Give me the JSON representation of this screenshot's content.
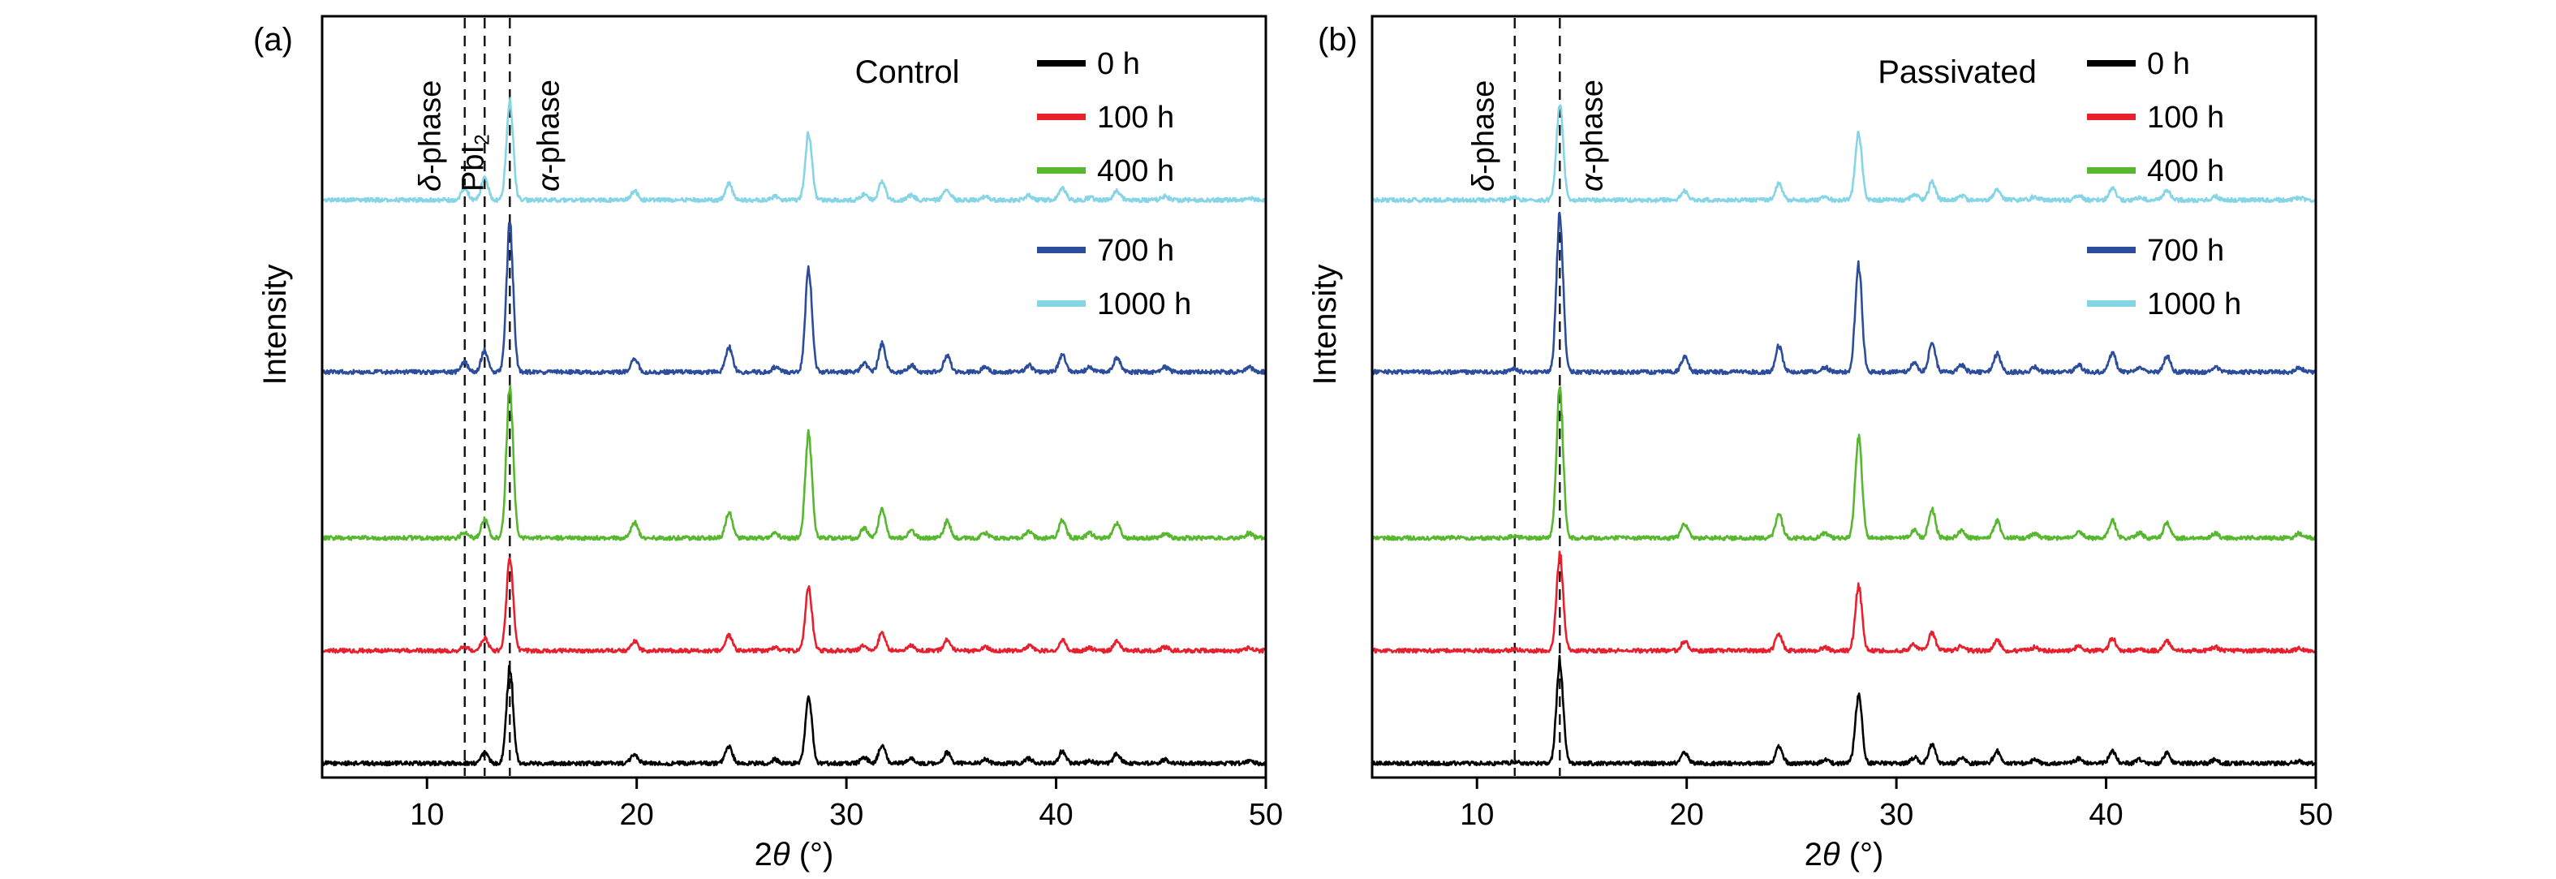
{
  "chart_data": [
    {
      "type": "line",
      "panel_tag": "(a)",
      "title": "Control",
      "xlabel": "2θ (°)",
      "ylabel": "Intensity",
      "xlim": [
        5,
        50
      ],
      "xticks": [
        10,
        20,
        30,
        40,
        50
      ],
      "ylim": [
        -0.12,
        6.3
      ],
      "grid": false,
      "legend": {
        "position": "top-right-inside",
        "groups": [
          [
            "0 h",
            "100 h",
            "400 h"
          ],
          [
            "700 h",
            "1000 h"
          ]
        ]
      },
      "annotations": [
        {
          "x": 11.8,
          "label": "δ-phase",
          "dx": -30
        },
        {
          "x": 12.75,
          "label": "PbI₂",
          "dx": -2
        },
        {
          "x": 13.95,
          "label": "α-phase",
          "dx": 60
        }
      ],
      "series": [
        {
          "name": "0 h",
          "color": "#000000",
          "offset": 0,
          "peaks": [
            [
              12.75,
              0.09
            ],
            [
              13.95,
              0.8
            ],
            [
              19.9,
              0.08
            ],
            [
              24.4,
              0.14
            ],
            [
              26.6,
              0.03
            ],
            [
              28.2,
              0.54
            ],
            [
              30.85,
              0.05
            ],
            [
              31.7,
              0.15
            ],
            [
              33.1,
              0.04
            ],
            [
              34.8,
              0.09
            ],
            [
              36.6,
              0.03
            ],
            [
              38.7,
              0.04
            ],
            [
              40.3,
              0.1
            ],
            [
              41.6,
              0.02
            ],
            [
              42.9,
              0.08
            ],
            [
              45.2,
              0.03
            ],
            [
              49.2,
              0.02
            ]
          ]
        },
        {
          "name": "100 h",
          "color": "#e8202e",
          "offset": 0.95,
          "peaks": [
            [
              11.8,
              0.03
            ],
            [
              12.75,
              0.11
            ],
            [
              13.95,
              0.78
            ],
            [
              19.9,
              0.08
            ],
            [
              24.4,
              0.13
            ],
            [
              26.6,
              0.03
            ],
            [
              28.2,
              0.53
            ],
            [
              30.85,
              0.05
            ],
            [
              31.7,
              0.15
            ],
            [
              33.1,
              0.04
            ],
            [
              34.8,
              0.09
            ],
            [
              36.6,
              0.03
            ],
            [
              38.7,
              0.04
            ],
            [
              40.3,
              0.09
            ],
            [
              41.6,
              0.02
            ],
            [
              42.9,
              0.08
            ],
            [
              45.2,
              0.03
            ],
            [
              49.2,
              0.02
            ]
          ]
        },
        {
          "name": "400 h",
          "color": "#57b830",
          "offset": 1.9,
          "peaks": [
            [
              11.8,
              0.05
            ],
            [
              12.75,
              0.16
            ],
            [
              13.95,
              1.28
            ],
            [
              19.9,
              0.13
            ],
            [
              24.4,
              0.22
            ],
            [
              26.6,
              0.04
            ],
            [
              28.2,
              0.87
            ],
            [
              30.85,
              0.08
            ],
            [
              31.7,
              0.24
            ],
            [
              33.1,
              0.06
            ],
            [
              34.8,
              0.14
            ],
            [
              36.6,
              0.04
            ],
            [
              38.7,
              0.06
            ],
            [
              40.3,
              0.15
            ],
            [
              41.6,
              0.04
            ],
            [
              42.9,
              0.13
            ],
            [
              45.2,
              0.04
            ],
            [
              49.2,
              0.04
            ]
          ]
        },
        {
          "name": "700 h",
          "color": "#2c4d9c",
          "offset": 3.3,
          "peaks": [
            [
              11.8,
              0.08
            ],
            [
              12.75,
              0.18
            ],
            [
              13.95,
              1.25
            ],
            [
              19.9,
              0.12
            ],
            [
              24.4,
              0.21
            ],
            [
              26.6,
              0.04
            ],
            [
              28.2,
              0.85
            ],
            [
              30.85,
              0.07
            ],
            [
              31.7,
              0.24
            ],
            [
              33.1,
              0.06
            ],
            [
              34.8,
              0.14
            ],
            [
              36.6,
              0.04
            ],
            [
              38.7,
              0.06
            ],
            [
              40.3,
              0.15
            ],
            [
              41.6,
              0.04
            ],
            [
              42.9,
              0.12
            ],
            [
              45.2,
              0.04
            ],
            [
              49.2,
              0.04
            ]
          ]
        },
        {
          "name": "1000 h",
          "color": "#85d5e6",
          "offset": 4.75,
          "peaks": [
            [
              11.8,
              0.1
            ],
            [
              12.75,
              0.19
            ],
            [
              13.95,
              0.82
            ],
            [
              19.9,
              0.08
            ],
            [
              24.4,
              0.14
            ],
            [
              26.6,
              0.03
            ],
            [
              28.2,
              0.56
            ],
            [
              30.85,
              0.05
            ],
            [
              31.7,
              0.16
            ],
            [
              33.1,
              0.04
            ],
            [
              34.8,
              0.09
            ],
            [
              36.6,
              0.03
            ],
            [
              38.7,
              0.04
            ],
            [
              40.3,
              0.1
            ],
            [
              41.6,
              0.02
            ],
            [
              42.9,
              0.08
            ],
            [
              45.2,
              0.03
            ],
            [
              49.2,
              0.02
            ]
          ]
        }
      ]
    },
    {
      "type": "line",
      "panel_tag": "(b)",
      "title": "Passivated",
      "xlabel": "2θ (°)",
      "ylabel": "Intensity",
      "xlim": [
        5,
        50
      ],
      "xticks": [
        10,
        20,
        30,
        40,
        50
      ],
      "ylim": [
        -0.12,
        6.3
      ],
      "grid": false,
      "legend": {
        "position": "top-right-inside",
        "groups": [
          [
            "0 h",
            "100 h",
            "400 h"
          ],
          [
            "700 h",
            "1000 h"
          ]
        ]
      },
      "annotations": [
        {
          "x": 11.8,
          "label": "δ-phase",
          "dx": -26
        },
        {
          "x": 13.95,
          "label": "α-phase",
          "dx": 52
        }
      ],
      "series": [
        {
          "name": "0 h",
          "color": "#000000",
          "offset": 0,
          "peaks": [
            [
              11.8,
              0.015
            ],
            [
              13.95,
              0.85
            ],
            [
              19.9,
              0.09
            ],
            [
              24.4,
              0.15
            ],
            [
              26.6,
              0.03
            ],
            [
              28.2,
              0.58
            ],
            [
              30.85,
              0.05
            ],
            [
              31.7,
              0.16
            ],
            [
              33.1,
              0.04
            ],
            [
              34.8,
              0.1
            ],
            [
              36.6,
              0.03
            ],
            [
              38.7,
              0.04
            ],
            [
              40.3,
              0.1
            ],
            [
              41.6,
              0.03
            ],
            [
              42.9,
              0.09
            ],
            [
              45.2,
              0.03
            ],
            [
              49.2,
              0.02
            ]
          ]
        },
        {
          "name": "100 h",
          "color": "#e8202e",
          "offset": 0.95,
          "peaks": [
            [
              11.8,
              0.015
            ],
            [
              13.95,
              0.8
            ],
            [
              19.9,
              0.08
            ],
            [
              24.4,
              0.14
            ],
            [
              26.6,
              0.03
            ],
            [
              28.2,
              0.54
            ],
            [
              30.85,
              0.05
            ],
            [
              31.7,
              0.15
            ],
            [
              33.1,
              0.04
            ],
            [
              34.8,
              0.09
            ],
            [
              36.6,
              0.03
            ],
            [
              38.7,
              0.04
            ],
            [
              40.3,
              0.1
            ],
            [
              41.6,
              0.02
            ],
            [
              42.9,
              0.08
            ],
            [
              45.2,
              0.03
            ],
            [
              49.2,
              0.02
            ]
          ]
        },
        {
          "name": "400 h",
          "color": "#57b830",
          "offset": 1.9,
          "peaks": [
            [
              11.8,
              0.02
            ],
            [
              13.95,
              1.25
            ],
            [
              19.9,
              0.12
            ],
            [
              24.4,
              0.21
            ],
            [
              26.6,
              0.04
            ],
            [
              28.2,
              0.85
            ],
            [
              30.85,
              0.07
            ],
            [
              31.7,
              0.24
            ],
            [
              33.1,
              0.06
            ],
            [
              34.8,
              0.14
            ],
            [
              36.6,
              0.04
            ],
            [
              38.7,
              0.06
            ],
            [
              40.3,
              0.15
            ],
            [
              41.6,
              0.04
            ],
            [
              42.9,
              0.12
            ],
            [
              45.2,
              0.04
            ],
            [
              49.2,
              0.04
            ]
          ]
        },
        {
          "name": "700 h",
          "color": "#2c4d9c",
          "offset": 3.3,
          "peaks": [
            [
              11.8,
              0.025
            ],
            [
              13.95,
              1.32
            ],
            [
              19.9,
              0.13
            ],
            [
              24.4,
              0.22
            ],
            [
              26.6,
              0.04
            ],
            [
              28.2,
              0.9
            ],
            [
              30.85,
              0.08
            ],
            [
              31.7,
              0.25
            ],
            [
              33.1,
              0.06
            ],
            [
              34.8,
              0.15
            ],
            [
              36.6,
              0.04
            ],
            [
              38.7,
              0.06
            ],
            [
              40.3,
              0.16
            ],
            [
              41.6,
              0.04
            ],
            [
              42.9,
              0.13
            ],
            [
              45.2,
              0.04
            ],
            [
              49.2,
              0.04
            ]
          ]
        },
        {
          "name": "1000 h",
          "color": "#85d5e6",
          "offset": 4.75,
          "peaks": [
            [
              11.8,
              0.03
            ],
            [
              13.95,
              0.8
            ],
            [
              19.9,
              0.08
            ],
            [
              24.4,
              0.14
            ],
            [
              26.6,
              0.03
            ],
            [
              28.2,
              0.55
            ],
            [
              30.85,
              0.05
            ],
            [
              31.7,
              0.15
            ],
            [
              33.1,
              0.04
            ],
            [
              34.8,
              0.09
            ],
            [
              36.6,
              0.03
            ],
            [
              38.7,
              0.04
            ],
            [
              40.3,
              0.1
            ],
            [
              41.6,
              0.02
            ],
            [
              42.9,
              0.08
            ],
            [
              45.2,
              0.03
            ],
            [
              49.2,
              0.02
            ]
          ]
        }
      ]
    }
  ]
}
